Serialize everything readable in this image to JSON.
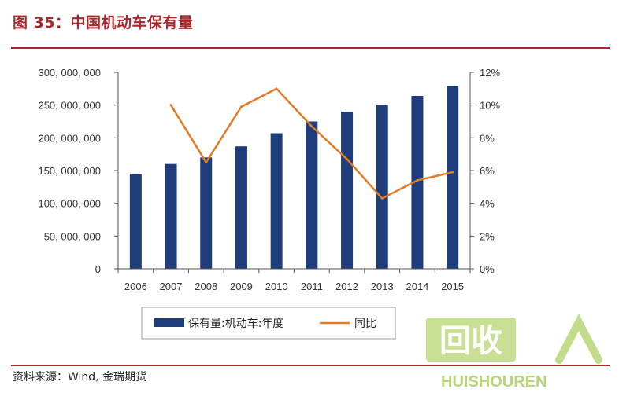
{
  "figure": {
    "title": "图 35：中国机动车保有量",
    "source": "资料来源：Wind, 金瑞期货"
  },
  "colors": {
    "bar": "#1f3d7a",
    "line": "#e07b27",
    "rule": "#a8262c",
    "axis": "#555555",
    "watermark_green": "#9bc53d"
  },
  "watermark": {
    "logo_text": "回收",
    "wordmark": "HUISHOUREN"
  },
  "chart_data": {
    "type": "bar",
    "categories": [
      "2006",
      "2007",
      "2008",
      "2009",
      "2010",
      "2011",
      "2012",
      "2013",
      "2014",
      "2015"
    ],
    "series": [
      {
        "name": "保有量:机动车:年度",
        "type": "bar",
        "axis": "left",
        "values": [
          145000000,
          160000000,
          170000000,
          187000000,
          207000000,
          225000000,
          240000000,
          250000000,
          264000000,
          279000000
        ]
      },
      {
        "name": "同比",
        "type": "line",
        "axis": "right",
        "values": [
          null,
          10.0,
          6.5,
          9.9,
          11.0,
          8.7,
          6.7,
          4.3,
          5.4,
          5.9
        ]
      }
    ],
    "left_axis": {
      "ylim": [
        0,
        300000000
      ],
      "ticks": [
        "0",
        "50, 000, 000",
        "100, 000, 000",
        "150, 000, 000",
        "200, 000, 000",
        "250, 000, 000",
        "300, 000, 000"
      ]
    },
    "right_axis": {
      "ylim": [
        0,
        12
      ],
      "ticks": [
        "0%",
        "2%",
        "4%",
        "6%",
        "8%",
        "10%",
        "12%"
      ]
    },
    "legend": {
      "placement": "bottom",
      "items": [
        "保有量:机动车:年度",
        "同比"
      ]
    },
    "grid": false
  }
}
